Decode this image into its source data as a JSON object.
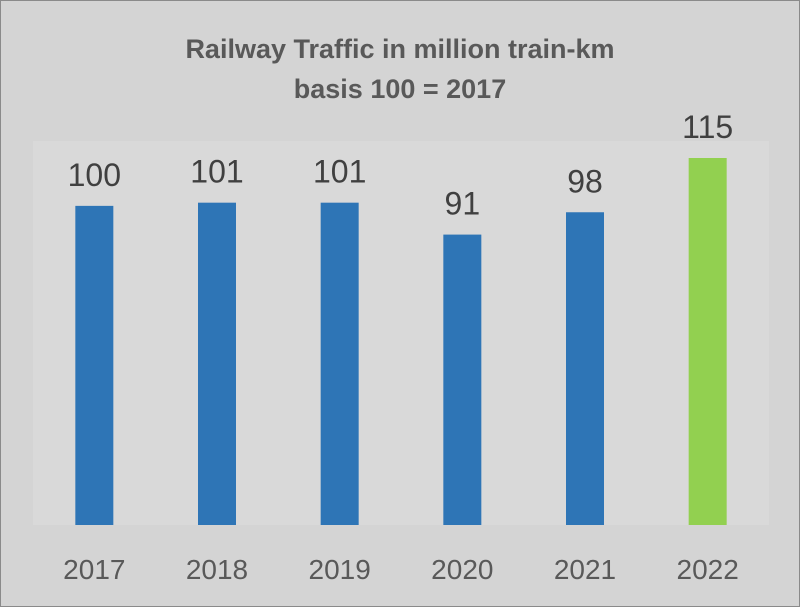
{
  "chart_data": {
    "type": "bar",
    "title": "Railway Traffic in million train-km",
    "subtitle": "basis 100 = 2017",
    "xlabel": "",
    "ylabel": "",
    "categories": [
      "2017",
      "2018",
      "2019",
      "2020",
      "2021",
      "2022"
    ],
    "values": [
      100,
      101,
      101,
      91,
      98,
      115
    ],
    "data_labels": [
      "100",
      "101",
      "101",
      "91",
      "98",
      "115"
    ],
    "ylim": [
      0,
      115
    ],
    "grid": false,
    "legend": "none",
    "colors": {
      "default_bar": "#2e75b6",
      "highlight_bar": "#92d050",
      "plot_area": "#d9d9d9",
      "frame": "#d4d4d4",
      "text": "#404040",
      "title_text": "#595959"
    },
    "highlight_index": 5
  }
}
